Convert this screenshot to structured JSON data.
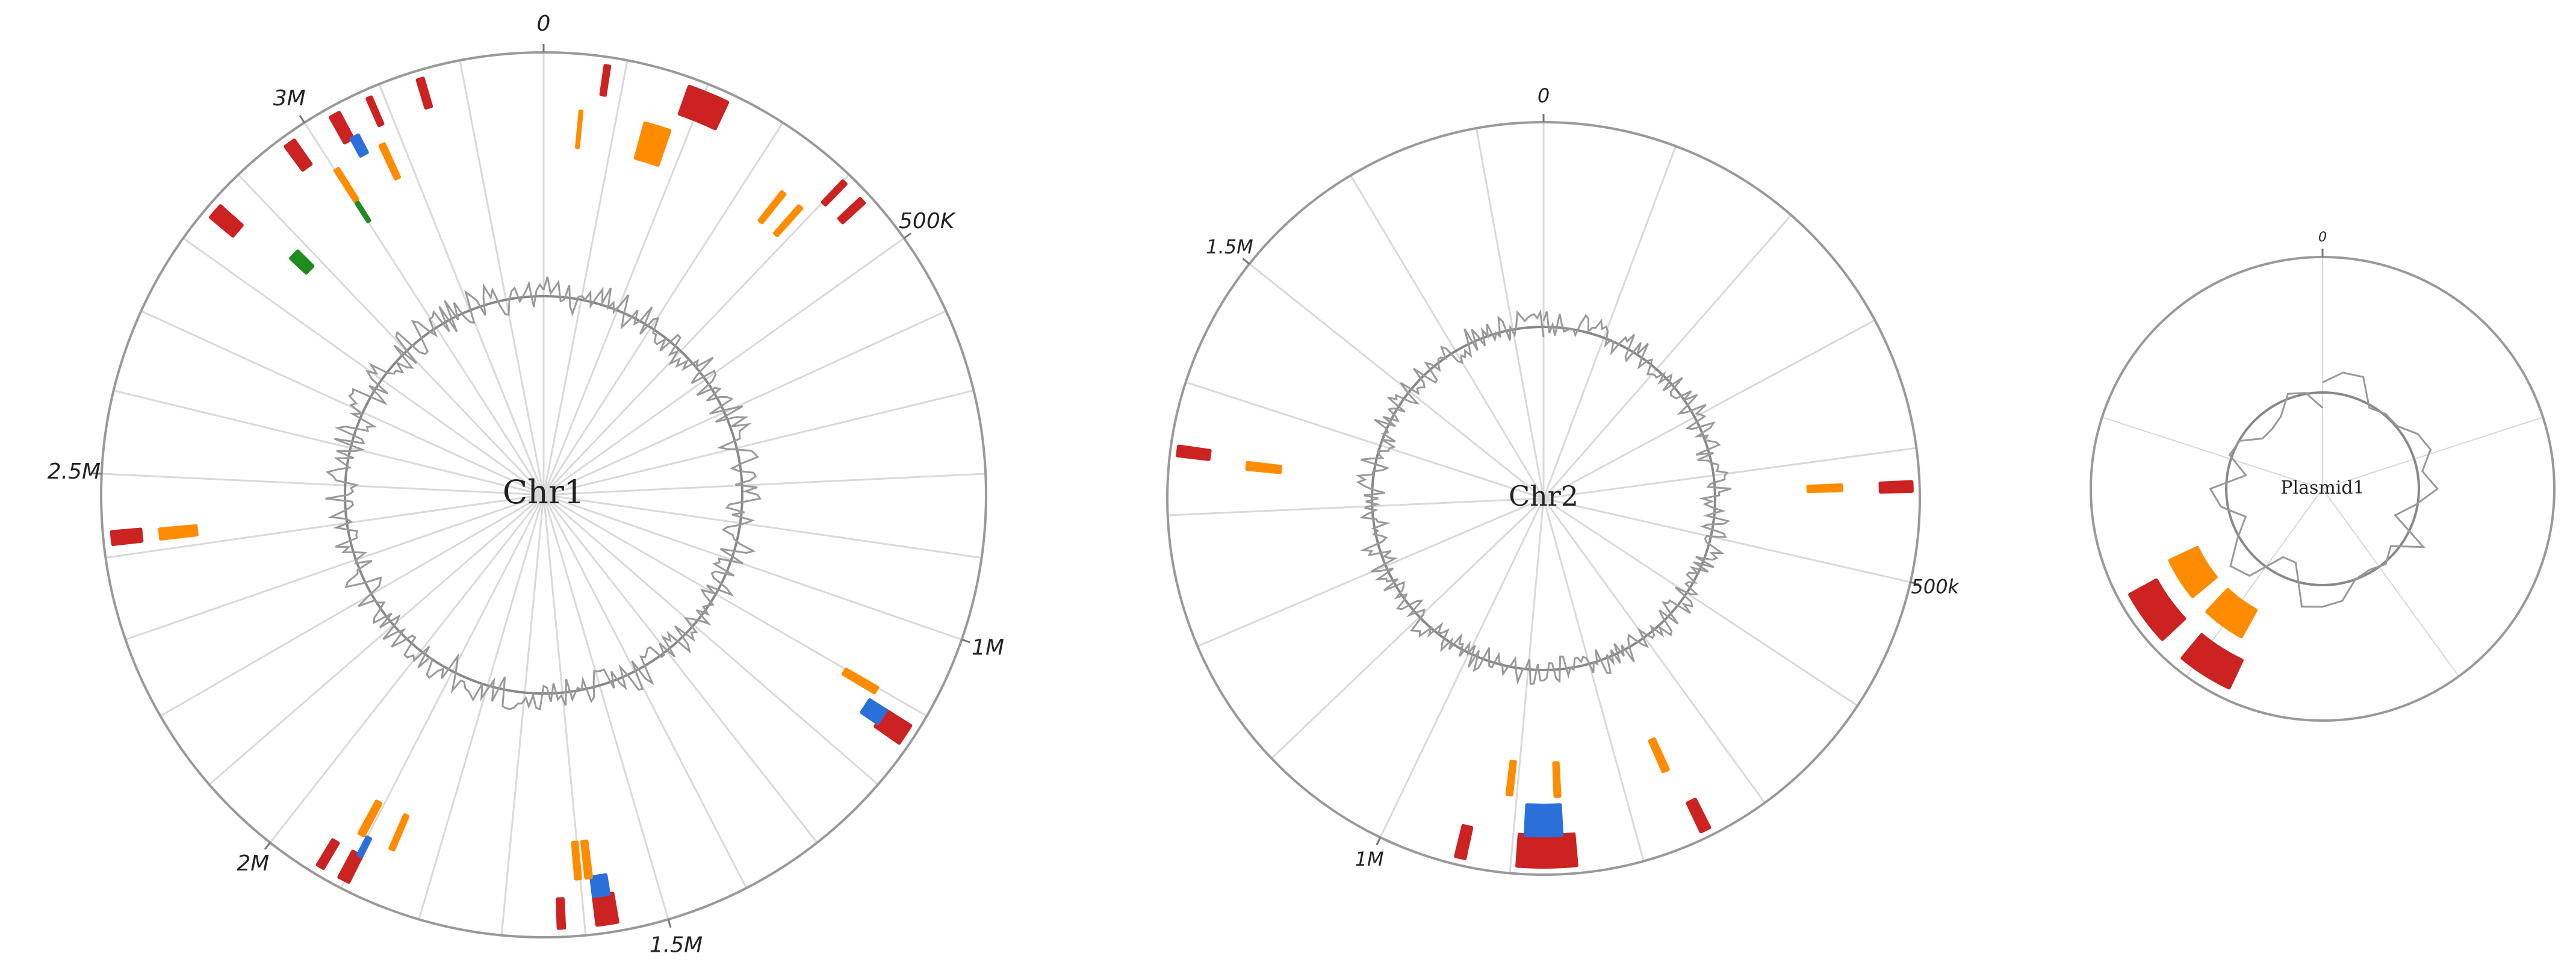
{
  "chart_data": [
    {
      "type": "circular",
      "title": "Chr1",
      "angular_unit": "bp",
      "genome_length": 3300000,
      "tick_labels": [
        {
          "label": "0",
          "pos": 0
        },
        {
          "label": "500K",
          "pos": 500000
        },
        {
          "label": "1M",
          "pos": 1000000
        },
        {
          "label": "1.5M",
          "pos": 1500000
        },
        {
          "label": "2M",
          "pos": 2000000
        },
        {
          "label": "2.5M",
          "pos": 2500000
        },
        {
          "label": "3M",
          "pos": 3000000
        }
      ],
      "radial_grid_step": 100000,
      "features": [
        {
          "track": 1,
          "color": "#cc2222",
          "start": 75000,
          "end": 80000
        },
        {
          "track": 1,
          "color": "#cc2222",
          "start": 180000,
          "end": 230000
        },
        {
          "track": 1,
          "color": "#cc2222",
          "start": 400000,
          "end": 405000
        },
        {
          "track": 1,
          "color": "#cc2222",
          "start": 430000,
          "end": 437000
        },
        {
          "track": 1,
          "color": "#cc2222",
          "start": 1120000,
          "end": 1145000
        },
        {
          "track": 1,
          "color": "#cc2222",
          "start": 1560000,
          "end": 1585000
        },
        {
          "track": 1,
          "color": "#cc2222",
          "start": 1625000,
          "end": 1632000
        },
        {
          "track": 1,
          "color": "#cc2222",
          "start": 1895000,
          "end": 1908000
        },
        {
          "track": 1,
          "color": "#cc2222",
          "start": 1930000,
          "end": 1938000
        },
        {
          "track": 1,
          "color": "#cc2222",
          "start": 2415000,
          "end": 2430000
        },
        {
          "track": 1,
          "color": "#cc2222",
          "start": 2840000,
          "end": 2858000
        },
        {
          "track": 1,
          "color": "#cc2222",
          "start": 2965000,
          "end": 2978000
        },
        {
          "track": 1,
          "color": "#cc2222",
          "start": 3030000,
          "end": 3042000
        },
        {
          "track": 1,
          "color": "#cc2222",
          "start": 3145000,
          "end": 3152000
        },
        {
          "track": 1,
          "color": "#cc2222",
          "start": 3080000,
          "end": 3085000
        },
        {
          "track": 2,
          "color": "#2b6fdb",
          "start": 1120000,
          "end": 1140000
        },
        {
          "track": 2,
          "color": "#2b6fdb",
          "start": 1565000,
          "end": 1585000
        },
        {
          "track": 2,
          "color": "#2b6fdb",
          "start": 1895000,
          "end": 1900000
        },
        {
          "track": 2,
          "color": "#2b6fdb",
          "start": 3040000,
          "end": 3050000
        },
        {
          "track": 3,
          "color": "#ff8c00",
          "start": 50000,
          "end": 52000
        },
        {
          "track": 3,
          "color": "#ff8c00",
          "start": 140000,
          "end": 175000
        },
        {
          "track": 3,
          "color": "#ff8c00",
          "start": 350000,
          "end": 355000
        },
        {
          "track": 3,
          "color": "#ff8c00",
          "start": 380000,
          "end": 385000
        },
        {
          "track": 3,
          "color": "#ff8c00",
          "start": 1100000,
          "end": 1108000
        },
        {
          "track": 3,
          "color": "#ff8c00",
          "start": 1585000,
          "end": 1592000
        },
        {
          "track": 3,
          "color": "#ff8c00",
          "start": 1600000,
          "end": 1606000
        },
        {
          "track": 3,
          "color": "#ff8c00",
          "start": 1860000,
          "end": 1865000
        },
        {
          "track": 3,
          "color": "#ff8c00",
          "start": 1905000,
          "end": 1912000
        },
        {
          "track": 3,
          "color": "#ff8c00",
          "start": 2415000,
          "end": 2428000
        },
        {
          "track": 3,
          "color": "#ff8c00",
          "start": 3070000,
          "end": 3076000
        },
        {
          "track": 3,
          "color": "#ff8c00",
          "start": 3000000,
          "end": 3005000
        },
        {
          "track": 4,
          "color": "#1e8c1e",
          "start": 3000000,
          "end": 3003000
        },
        {
          "track": 4,
          "color": "#1e8c1e",
          "start": 2870000,
          "end": 2885000
        }
      ]
    },
    {
      "type": "circular",
      "title": "Chr2",
      "angular_unit": "bp",
      "genome_length": 1750000,
      "tick_labels": [
        {
          "label": "0",
          "pos": 0
        },
        {
          "label": "500k",
          "pos": 500000
        },
        {
          "label": "1M",
          "pos": 1000000
        },
        {
          "label": "1.5M",
          "pos": 1500000
        }
      ],
      "radial_grid_step": 100000,
      "features": [
        {
          "track": 1,
          "color": "#cc2222",
          "start": 425000,
          "end": 432000
        },
        {
          "track": 1,
          "color": "#cc2222",
          "start": 745000,
          "end": 752000
        },
        {
          "track": 1,
          "color": "#cc2222",
          "start": 850000,
          "end": 895000
        },
        {
          "track": 1,
          "color": "#cc2222",
          "start": 935000,
          "end": 942000
        },
        {
          "track": 1,
          "color": "#cc2222",
          "start": 1345000,
          "end": 1352000
        },
        {
          "track": 2,
          "color": "#2b6fdb",
          "start": 860000,
          "end": 890000
        },
        {
          "track": 3,
          "color": "#ff8c00",
          "start": 425000,
          "end": 430000
        },
        {
          "track": 3,
          "color": "#ff8c00",
          "start": 755000,
          "end": 760000
        },
        {
          "track": 3,
          "color": "#ff8c00",
          "start": 860000,
          "end": 864000
        },
        {
          "track": 3,
          "color": "#ff8c00",
          "start": 905000,
          "end": 909000
        },
        {
          "track": 3,
          "color": "#ff8c00",
          "start": 1340000,
          "end": 1346000
        }
      ]
    },
    {
      "type": "circular",
      "title": "Plasmid1",
      "angular_unit": "bp",
      "genome_length": 100000,
      "tick_labels": [
        {
          "label": "0",
          "pos": 0
        }
      ],
      "radial_grid_step": 20000,
      "features": [
        {
          "track": 1,
          "color": "#cc2222",
          "start": 57000,
          "end": 61000
        },
        {
          "track": 1,
          "color": "#cc2222",
          "start": 63000,
          "end": 67000
        },
        {
          "track": 3,
          "color": "#ff8c00",
          "start": 58000,
          "end": 62000
        },
        {
          "track": 3,
          "color": "#ff8c00",
          "start": 64000,
          "end": 68000
        }
      ]
    }
  ],
  "gc_tracks": [
    {
      "chart": "Chr1",
      "color": "#999999"
    },
    {
      "chart": "Chr2",
      "color": "#999999"
    },
    {
      "chart": "Plasmid1",
      "color": "#999999"
    }
  ]
}
